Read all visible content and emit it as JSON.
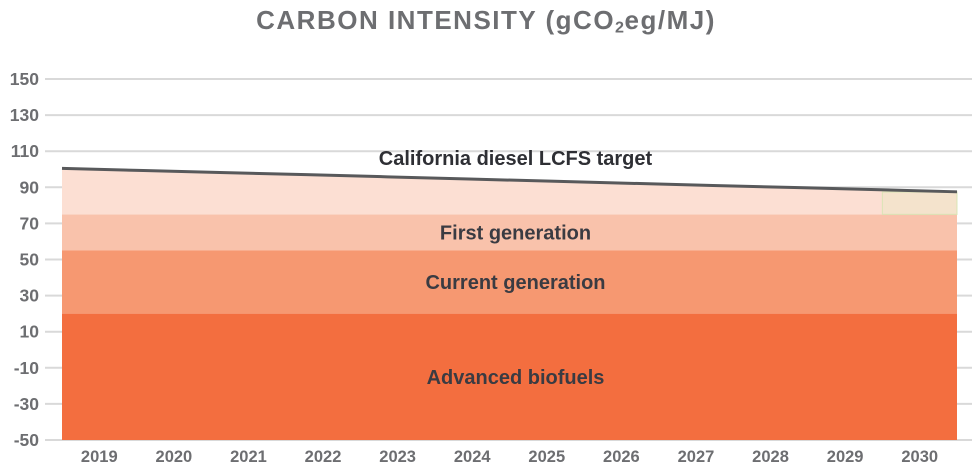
{
  "title": {
    "pre": "CARBON INTENSITY (gCO",
    "sub": "2",
    "post": "eg/MJ)"
  },
  "colors": {
    "background": "#ffffff",
    "title_text": "#6d6e71",
    "axis_text": "#6d6e71",
    "gridline": "#d9d9d9",
    "target_line": "#58595b",
    "highlight_fill": "rgba(225,238,190,0.30)",
    "highlight_stroke": "rgba(214,228,178,0.75)"
  },
  "chart_data": {
    "type": "area",
    "title": "CARBON INTENSITY (gCO2eg/MJ)",
    "xlabel": "",
    "ylabel": "",
    "x": [
      2019,
      2020,
      2021,
      2022,
      2023,
      2024,
      2025,
      2026,
      2027,
      2028,
      2029,
      2030
    ],
    "y_ticks": [
      150,
      130,
      110,
      90,
      70,
      50,
      30,
      10,
      -10,
      -30,
      -50
    ],
    "ylim": [
      -50,
      150
    ],
    "grid": "horizontal",
    "legend_position": "labels-inside-areas",
    "series": [
      {
        "id": "california-diesel-lcfs-target",
        "name": "California diesel LCFS target",
        "role": "line-with-area-below",
        "values": [
          100.5,
          99.3,
          98.1,
          97.0,
          95.8,
          94.6,
          93.4,
          92.2,
          91.0,
          89.9,
          88.7,
          87.5
        ],
        "area_base": 75,
        "fill": "#fcdfd3",
        "line_color": "#58595b"
      },
      {
        "id": "first-generation",
        "name": "First generation",
        "role": "constant-band",
        "band": [
          55,
          75
        ],
        "fill": "#f9c2ab"
      },
      {
        "id": "current-generation",
        "name": "Current generation",
        "role": "constant-band",
        "band": [
          20,
          55
        ],
        "fill": "#f69871"
      },
      {
        "id": "advanced-biofuels",
        "name": "Advanced biofuels",
        "role": "constant-band",
        "band": [
          -50,
          20
        ],
        "fill": "#f36e3f"
      }
    ]
  }
}
